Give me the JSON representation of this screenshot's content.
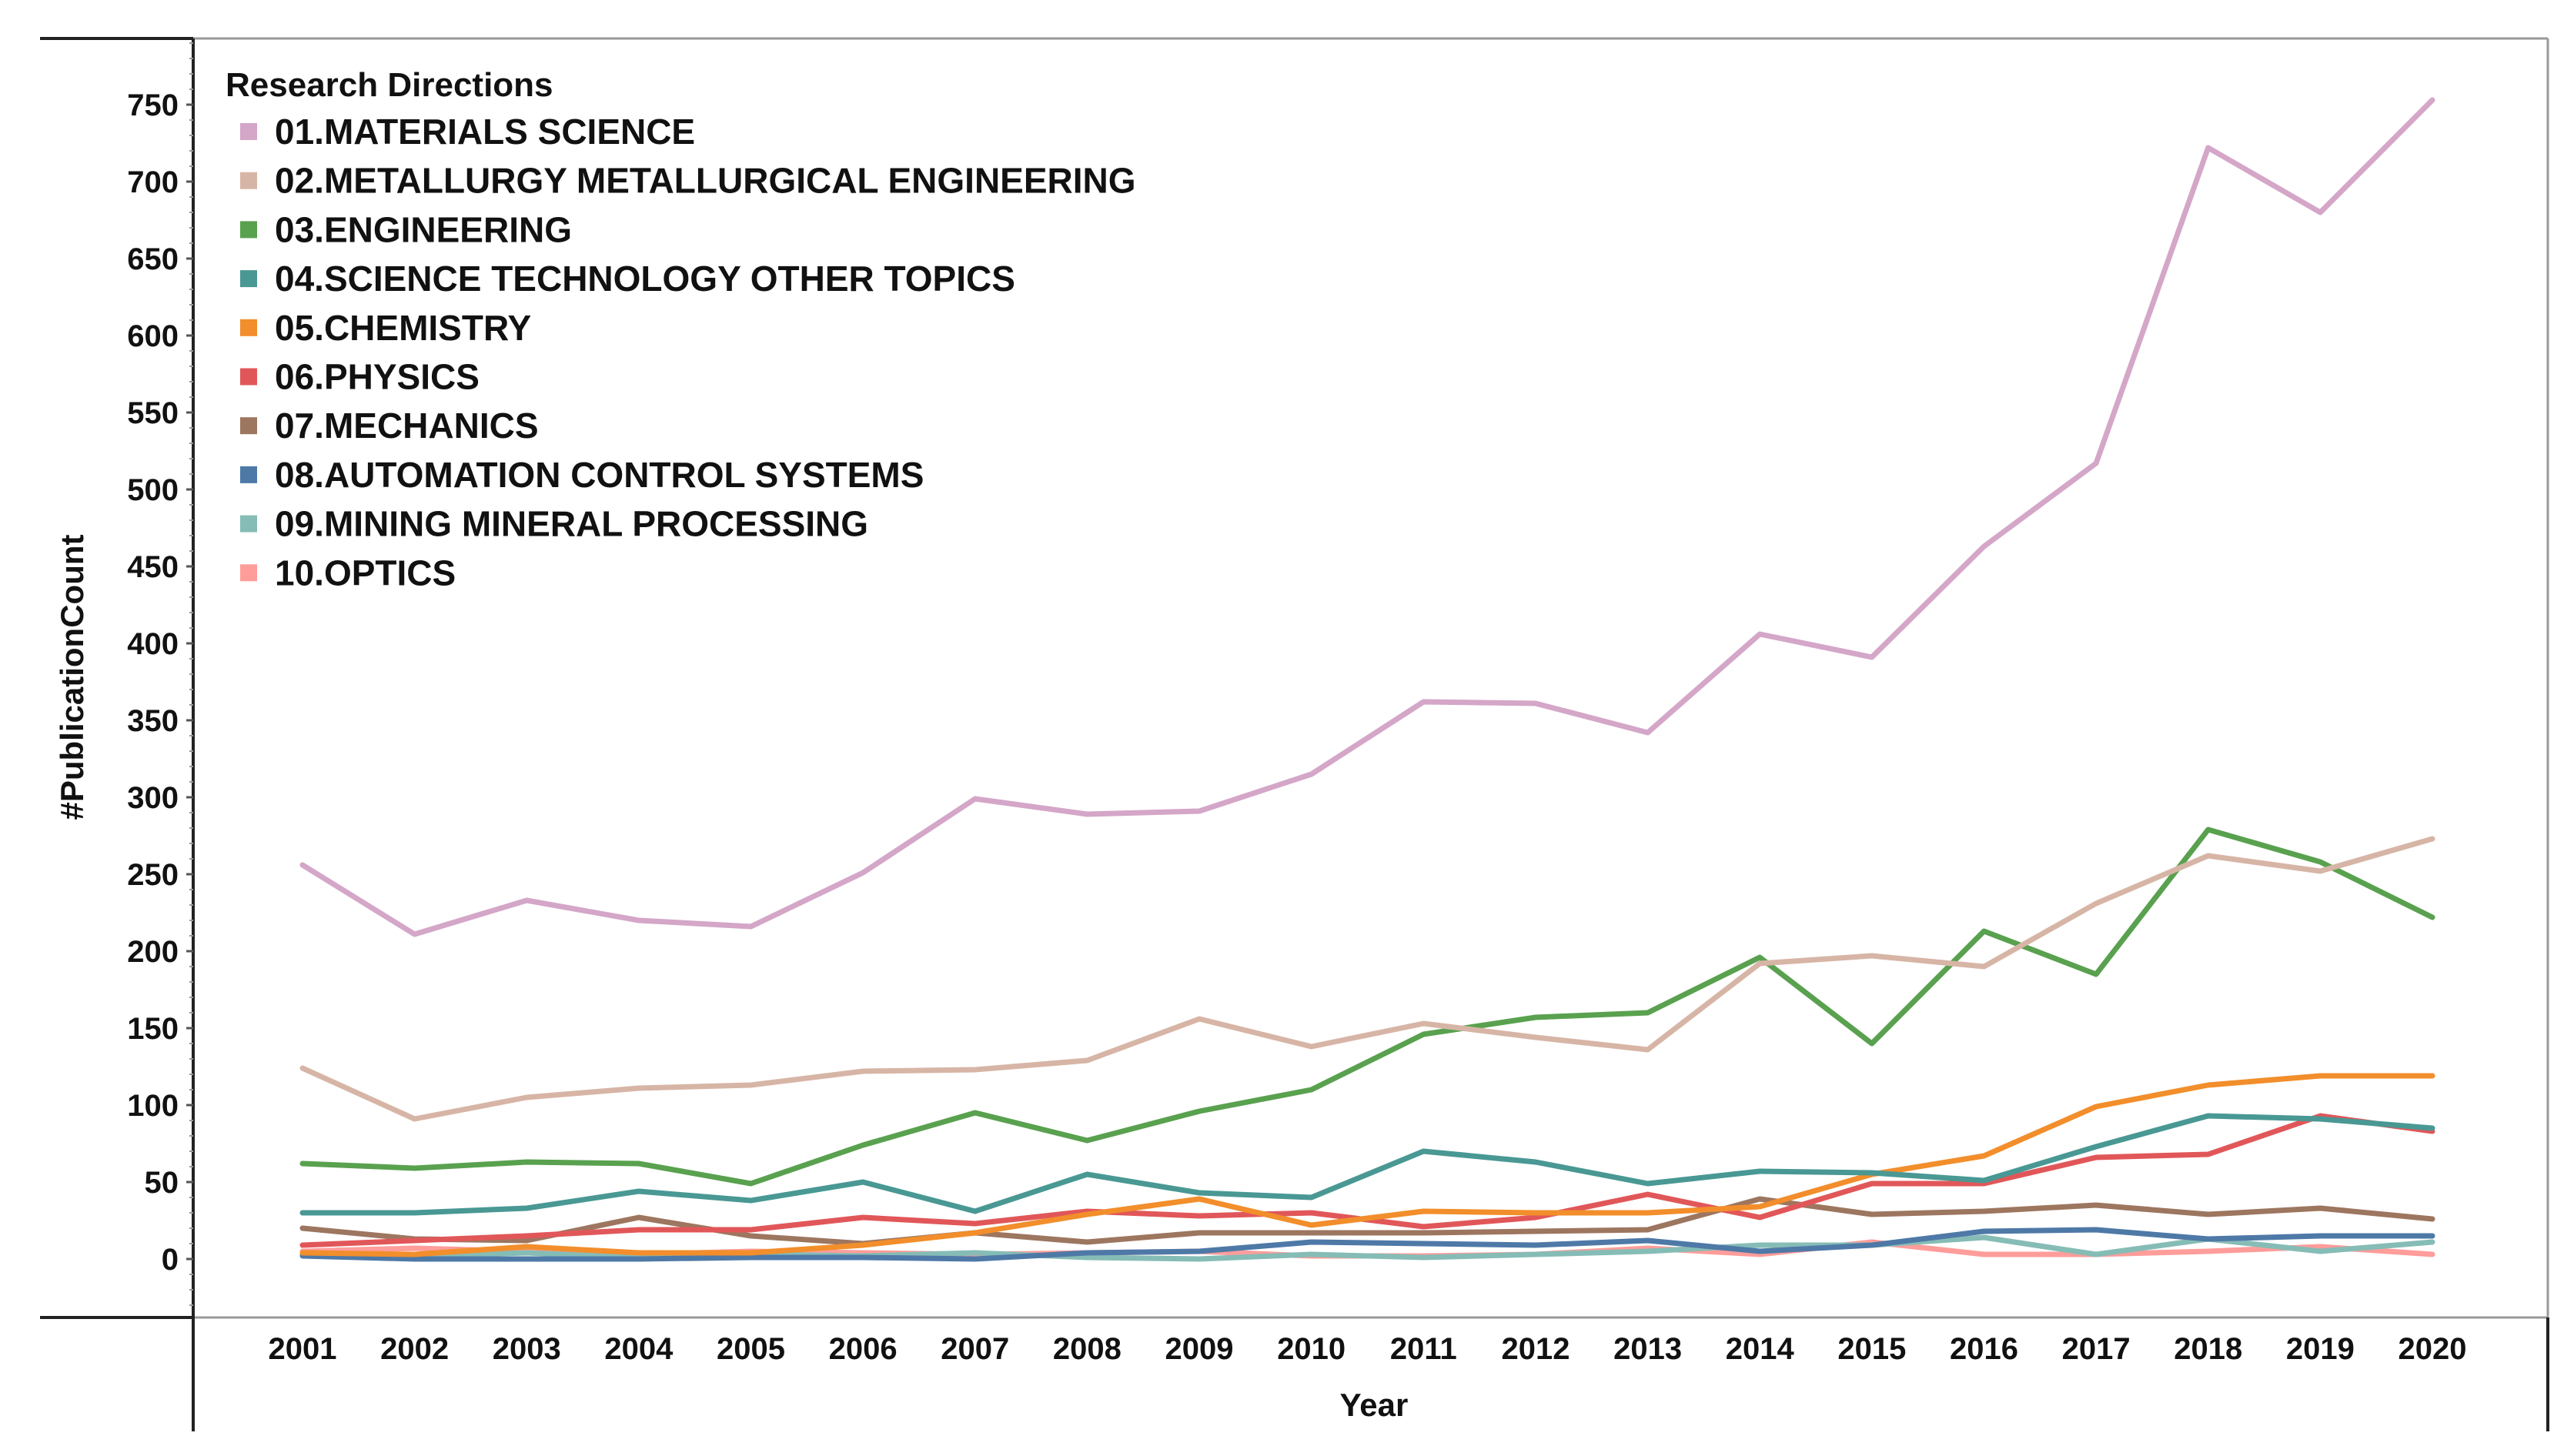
{
  "chart_data": {
    "type": "line",
    "title": "",
    "xlabel": "Year",
    "ylabel": "#PublicationCount",
    "ylim": [
      -38,
      793
    ],
    "yticks": [
      0,
      50,
      100,
      150,
      200,
      250,
      300,
      350,
      400,
      450,
      500,
      550,
      600,
      650,
      700,
      750
    ],
    "x": [
      "2001",
      "2002",
      "2003",
      "2004",
      "2005",
      "2006",
      "2007",
      "2008",
      "2009",
      "2010",
      "2011",
      "2012",
      "2013",
      "2014",
      "2015",
      "2016",
      "2017",
      "2018",
      "2019",
      "2020"
    ],
    "legend": {
      "title": "Research Directions",
      "position": "top-left"
    },
    "series": [
      {
        "name": "01.MATERIALS SCIENCE",
        "color": "#d4a6c8",
        "values": [
          256,
          211,
          233,
          220,
          216,
          251,
          299,
          289,
          291,
          315,
          362,
          361,
          342,
          406,
          391,
          463,
          517,
          722,
          680,
          753
        ]
      },
      {
        "name": "02.METALLURGY METALLURGICAL ENGINEERING",
        "color": "#d7b5a6",
        "values": [
          124,
          91,
          105,
          111,
          113,
          122,
          123,
          129,
          156,
          138,
          153,
          144,
          136,
          192,
          197,
          190,
          231,
          262,
          252,
          273
        ]
      },
      {
        "name": "03.ENGINEERING",
        "color": "#59a14f",
        "values": [
          62,
          59,
          63,
          62,
          49,
          74,
          95,
          77,
          96,
          110,
          146,
          157,
          160,
          196,
          140,
          213,
          185,
          279,
          258,
          222
        ]
      },
      {
        "name": "04.SCIENCE TECHNOLOGY OTHER TOPICS",
        "color": "#499894",
        "values": [
          30,
          30,
          33,
          44,
          38,
          50,
          31,
          55,
          43,
          40,
          70,
          63,
          49,
          57,
          56,
          51,
          73,
          93,
          91,
          85
        ]
      },
      {
        "name": "05.CHEMISTRY",
        "color": "#f28e2b",
        "values": [
          4,
          3,
          8,
          4,
          4,
          9,
          17,
          29,
          39,
          22,
          31,
          30,
          30,
          34,
          55,
          67,
          99,
          113,
          119,
          119
        ]
      },
      {
        "name": "06.PHYSICS",
        "color": "#e15759",
        "values": [
          9,
          12,
          15,
          19,
          19,
          27,
          23,
          31,
          28,
          30,
          21,
          27,
          42,
          27,
          49,
          49,
          66,
          68,
          93,
          83
        ]
      },
      {
        "name": "07.MECHANICS",
        "color": "#9d7660",
        "values": [
          20,
          13,
          12,
          27,
          15,
          10,
          17,
          11,
          17,
          17,
          17,
          18,
          19,
          39,
          29,
          31,
          35,
          29,
          33,
          26
        ]
      },
      {
        "name": "08.AUTOMATION CONTROL SYSTEMS",
        "color": "#4e79a7",
        "values": [
          2,
          0,
          0,
          0,
          1,
          1,
          0,
          4,
          5,
          11,
          10,
          9,
          12,
          5,
          9,
          18,
          19,
          13,
          15,
          15
        ]
      },
      {
        "name": "09.MINING MINERAL PROCESSING",
        "color": "#86bcb6",
        "values": [
          3,
          2,
          4,
          1,
          3,
          2,
          4,
          1,
          0,
          3,
          1,
          3,
          5,
          9,
          9,
          14,
          3,
          13,
          5,
          11
        ]
      },
      {
        "name": "10.OPTICS",
        "color": "#ff9d9a",
        "values": [
          5,
          7,
          5,
          3,
          5,
          4,
          3,
          4,
          5,
          2,
          2,
          3,
          7,
          3,
          11,
          3,
          3,
          5,
          8,
          3
        ]
      }
    ]
  }
}
